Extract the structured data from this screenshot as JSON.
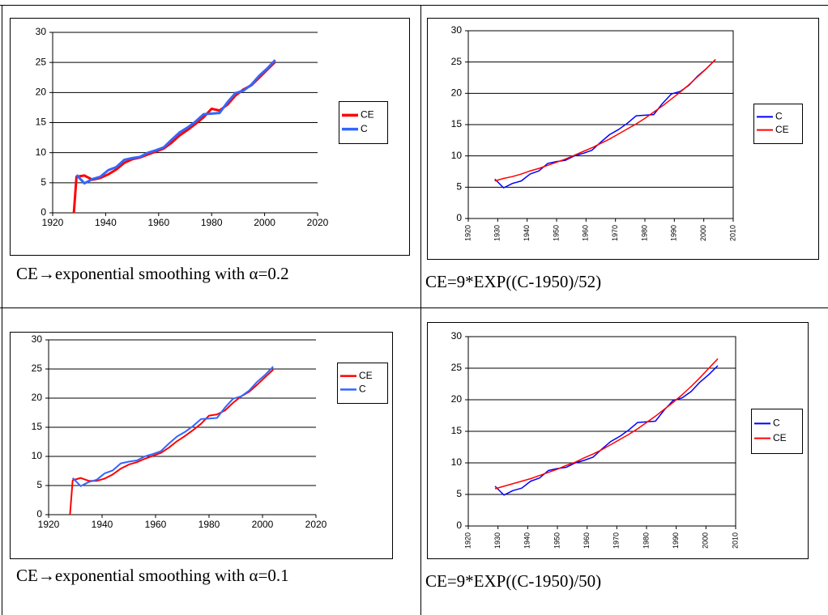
{
  "chart_data": [
    {
      "type": "line",
      "caption": "CE→exponential smoothing with α=0.2",
      "x": [
        1928,
        1929,
        1932,
        1935,
        1938,
        1941,
        1944,
        1947,
        1950,
        1953,
        1956,
        1959,
        1962,
        1965,
        1968,
        1971,
        1974,
        1977,
        1980,
        1983,
        1986,
        1989,
        1992,
        1995,
        1998,
        2001,
        2004
      ],
      "series": [
        {
          "name": "CE",
          "color": "#ff0000",
          "values": [
            0,
            6.0,
            6.2,
            5.5,
            5.8,
            6.4,
            7.2,
            8.3,
            8.9,
            9.2,
            9.7,
            10.2,
            10.7,
            11.7,
            12.9,
            13.8,
            14.8,
            15.9,
            17.3,
            17.0,
            18.0,
            19.5,
            20.5,
            21.2,
            22.5,
            23.8,
            25.1
          ]
        },
        {
          "name": "C",
          "color": "#3366ff",
          "values": [
            null,
            6.3,
            4.9,
            5.6,
            6.0,
            7.1,
            7.6,
            8.8,
            9.1,
            9.3,
            10.0,
            10.4,
            10.9,
            12.2,
            13.4,
            14.2,
            15.2,
            16.4,
            16.5,
            16.6,
            18.4,
            19.9,
            20.3,
            21.3,
            22.8,
            24.0,
            25.4
          ]
        }
      ],
      "xlim": [
        1920,
        2020
      ],
      "xticks": [
        1920,
        1940,
        1960,
        1980,
        2000,
        2020
      ],
      "ylim": [
        0,
        30
      ],
      "yticks": [
        0,
        5,
        10,
        15,
        20,
        25,
        30
      ],
      "grid": true
    },
    {
      "type": "line",
      "caption": "CE=9*EXP((C-1950)/52)",
      "x": [
        1929,
        1932,
        1935,
        1938,
        1941,
        1944,
        1947,
        1950,
        1953,
        1956,
        1959,
        1962,
        1965,
        1968,
        1971,
        1974,
        1977,
        1980,
        1983,
        1986,
        1989,
        1992,
        1995,
        1998,
        2001,
        2004
      ],
      "series": [
        {
          "name": "C",
          "color": "#0000ff",
          "values": [
            6.3,
            4.9,
            5.6,
            6.0,
            7.1,
            7.6,
            8.8,
            9.1,
            9.3,
            10.0,
            10.4,
            10.9,
            12.2,
            13.4,
            14.2,
            15.2,
            16.4,
            16.5,
            16.6,
            18.4,
            19.9,
            20.3,
            21.3,
            22.8,
            24.0,
            25.4
          ]
        },
        {
          "name": "CE",
          "color": "#ff0000",
          "values": [
            6.0,
            6.4,
            6.7,
            7.1,
            7.6,
            8.0,
            8.5,
            9.0,
            9.5,
            10.1,
            10.7,
            11.3,
            12.0,
            12.7,
            13.5,
            14.3,
            15.1,
            16.0,
            17.0,
            18.0,
            19.1,
            20.2,
            21.4,
            22.7,
            24.0,
            25.4
          ]
        }
      ],
      "xlim": [
        1920,
        2010
      ],
      "xticks": [
        1920,
        1930,
        1940,
        1950,
        1960,
        1970,
        1980,
        1990,
        2000,
        2010
      ],
      "ylim": [
        0,
        30
      ],
      "yticks": [
        0,
        5,
        10,
        15,
        20,
        25,
        30
      ],
      "grid": true
    },
    {
      "type": "line",
      "caption": "CE→exponential smoothing with α=0.1",
      "x": [
        1928,
        1929,
        1932,
        1935,
        1938,
        1941,
        1944,
        1947,
        1950,
        1953,
        1956,
        1959,
        1962,
        1965,
        1968,
        1971,
        1974,
        1977,
        1980,
        1983,
        1986,
        1989,
        1992,
        1995,
        1998,
        2001,
        2004
      ],
      "series": [
        {
          "name": "CE",
          "color": "#ff0000",
          "values": [
            0,
            5.9,
            6.3,
            5.8,
            5.8,
            6.2,
            6.9,
            7.9,
            8.6,
            9.0,
            9.6,
            10.1,
            10.6,
            11.5,
            12.6,
            13.5,
            14.5,
            15.6,
            17.0,
            17.2,
            17.9,
            19.2,
            20.3,
            21.1,
            22.3,
            23.6,
            24.9
          ]
        },
        {
          "name": "C",
          "color": "#3366ff",
          "values": [
            null,
            6.3,
            4.9,
            5.6,
            6.0,
            7.1,
            7.6,
            8.8,
            9.1,
            9.3,
            10.0,
            10.4,
            10.9,
            12.2,
            13.4,
            14.2,
            15.2,
            16.4,
            16.5,
            16.6,
            18.4,
            19.9,
            20.3,
            21.3,
            22.8,
            24.0,
            25.4
          ]
        }
      ],
      "xlim": [
        1920,
        2020
      ],
      "xticks": [
        1920,
        1940,
        1960,
        1980,
        2000,
        2020
      ],
      "ylim": [
        0,
        30
      ],
      "yticks": [
        0,
        5,
        10,
        15,
        20,
        25,
        30
      ],
      "grid": true
    },
    {
      "type": "line",
      "caption": "CE=9*EXP((C-1950)/50)",
      "x": [
        1929,
        1932,
        1935,
        1938,
        1941,
        1944,
        1947,
        1950,
        1953,
        1956,
        1959,
        1962,
        1965,
        1968,
        1971,
        1974,
        1977,
        1980,
        1983,
        1986,
        1989,
        1992,
        1995,
        1998,
        2001,
        2004
      ],
      "series": [
        {
          "name": "C",
          "color": "#0000ff",
          "values": [
            6.3,
            4.9,
            5.6,
            6.0,
            7.1,
            7.6,
            8.8,
            9.1,
            9.3,
            10.0,
            10.4,
            10.9,
            12.2,
            13.4,
            14.2,
            15.2,
            16.4,
            16.5,
            16.6,
            18.4,
            19.9,
            20.3,
            21.3,
            22.8,
            24.0,
            25.4
          ]
        },
        {
          "name": "CE",
          "color": "#ff0000",
          "values": [
            5.9,
            6.3,
            6.7,
            7.1,
            7.5,
            8.0,
            8.5,
            9.0,
            9.6,
            10.1,
            10.8,
            11.4,
            12.1,
            12.9,
            13.7,
            14.5,
            15.4,
            16.4,
            17.4,
            18.5,
            19.6,
            20.8,
            22.1,
            23.5,
            25.0,
            26.5
          ]
        }
      ],
      "xlim": [
        1920,
        2010
      ],
      "xticks": [
        1920,
        1930,
        1940,
        1950,
        1960,
        1970,
        1980,
        1990,
        2000,
        2010
      ],
      "ylim": [
        0,
        30
      ],
      "yticks": [
        0,
        5,
        10,
        15,
        20,
        25,
        30
      ],
      "grid": true
    }
  ]
}
